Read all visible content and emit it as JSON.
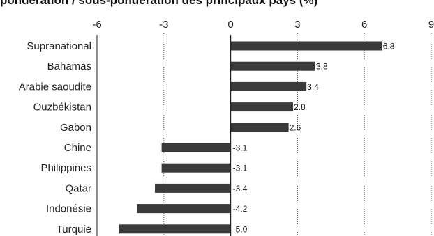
{
  "chart_data": {
    "type": "bar",
    "orientation": "horizontal",
    "title": "pondération / sous-pondération des principaux pays (%)",
    "categories": [
      "Supranational",
      "Bahamas",
      "Arabie saoudite",
      "Ouzbékistan",
      "Gabon",
      "Chine",
      "Philippines",
      "Qatar",
      "Indonésie",
      "Turquie"
    ],
    "values": [
      6.8,
      3.8,
      3.4,
      2.8,
      2.6,
      -3.1,
      -3.1,
      -3.4,
      -4.2,
      -5.0
    ],
    "value_labels": [
      "6.8",
      "3.8",
      "3.4",
      "2.8",
      "2.6",
      "-3.1",
      "-3.1",
      "-3.4",
      "-4.2",
      "-5.0"
    ],
    "xlim": [
      -6,
      9
    ],
    "xticks": [
      -6,
      -3,
      0,
      3,
      6,
      9
    ],
    "xtick_labels": [
      "-6",
      "-3",
      "0",
      "3",
      "6",
      "9"
    ],
    "tick_position": "top",
    "grid": "vertical dotted",
    "bar_color": "#3a3a3a"
  }
}
